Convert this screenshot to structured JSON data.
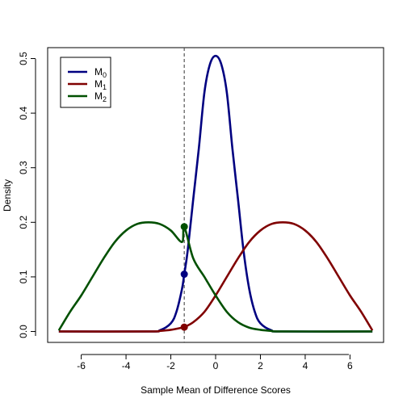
{
  "chart_data": {
    "type": "line",
    "title": "",
    "xlabel": "Sample Mean of Difference Scores",
    "ylabel": "Density",
    "xlim": [
      -7.5,
      7.5
    ],
    "ylim": [
      -0.02,
      0.52
    ],
    "x_ticks": [
      -6,
      -4,
      -2,
      0,
      2,
      4,
      6
    ],
    "x_tick_labels": [
      "-6",
      "-4",
      "-2",
      "0",
      "2",
      "4",
      "6"
    ],
    "y_ticks": [
      0.0,
      0.1,
      0.2,
      0.3,
      0.4,
      0.5
    ],
    "y_tick_labels": [
      "0.0",
      "0.1",
      "0.2",
      "0.3",
      "0.4",
      "0.5"
    ],
    "legend_position": "top-left",
    "grid": false,
    "series": [
      {
        "name": "M0",
        "legend_base": "M",
        "legend_sub": "0",
        "color": "#000080",
        "x": [
          -7,
          -3,
          -2.5,
          -2,
          -1.75,
          -1.5,
          -1.4,
          -1.25,
          -1,
          -0.75,
          -0.5,
          -0.25,
          0,
          0.25,
          0.5,
          0.75,
          1,
          1.25,
          1.5,
          1.75,
          2,
          2.5,
          3,
          7
        ],
        "y": [
          0,
          0,
          0.002,
          0.015,
          0.036,
          0.078,
          0.105,
          0.147,
          0.242,
          0.335,
          0.438,
          0.49,
          0.505,
          0.49,
          0.438,
          0.335,
          0.242,
          0.147,
          0.078,
          0.036,
          0.015,
          0.002,
          0,
          0
        ]
      },
      {
        "name": "M1",
        "legend_base": "M",
        "legend_sub": "1",
        "color": "#800000",
        "x": [
          -7,
          -3,
          -2.5,
          -2,
          -1.5,
          -1.4,
          -1,
          -0.5,
          0,
          0.5,
          1,
          1.5,
          2,
          2.5,
          3,
          3.5,
          4,
          4.5,
          5,
          5.5,
          6,
          6.5,
          7
        ],
        "y": [
          0,
          0,
          0.001,
          0.003,
          0.007,
          0.008,
          0.017,
          0.036,
          0.066,
          0.1,
          0.134,
          0.164,
          0.185,
          0.197,
          0.2,
          0.197,
          0.185,
          0.164,
          0.134,
          0.1,
          0.066,
          0.036,
          0.002
        ]
      },
      {
        "name": "M2",
        "legend_base": "M",
        "legend_sub": "2",
        "color": "#005000",
        "x": [
          -7,
          -6.5,
          -6,
          -5.5,
          -5,
          -4.5,
          -4,
          -3.5,
          -3,
          -2.5,
          -2,
          -1.5,
          -1.4,
          -1,
          -0.5,
          0,
          0.5,
          1,
          1.5,
          2,
          2.5,
          3,
          7
        ],
        "y": [
          0.002,
          0.036,
          0.066,
          0.1,
          0.134,
          0.164,
          0.185,
          0.197,
          0.2,
          0.197,
          0.185,
          0.164,
          0.192,
          0.134,
          0.1,
          0.066,
          0.036,
          0.017,
          0.007,
          0.003,
          0.001,
          0,
          0
        ]
      }
    ],
    "vline": {
      "x": -1.4,
      "style": "dashed",
      "color": "#555555"
    },
    "points": [
      {
        "series": "M0",
        "x": -1.4,
        "y": 0.105,
        "color": "#000080"
      },
      {
        "series": "M1",
        "x": -1.4,
        "y": 0.008,
        "color": "#800000"
      },
      {
        "series": "M2",
        "x": -1.4,
        "y": 0.192,
        "color": "#005000"
      }
    ]
  }
}
